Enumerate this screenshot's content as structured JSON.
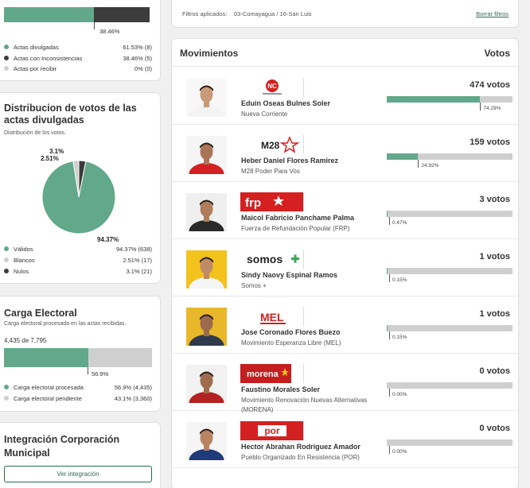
{
  "colors": {
    "green": "#62a88a",
    "dark": "#3c3c3c",
    "gray": "#cfcfcf",
    "accent": "#2e6b4f"
  },
  "actas": {
    "bar_percent_label": "38.46%",
    "bar_fill_fraction": 0.6153,
    "legend": [
      {
        "label": "Actas divulgadas",
        "value": "61.53% (8)",
        "color": "#62a88a"
      },
      {
        "label": "Actas con Inconsistencias",
        "value": "38.46% (5)",
        "color": "#3c3c3c"
      },
      {
        "label": "Actas por recibir",
        "value": "0% (0)",
        "color": "#cfcfcf"
      }
    ]
  },
  "distribucion": {
    "title": "Distribucion de votos de las actas divulgadas",
    "subtitle": "Distribución de los votos.",
    "legend": [
      {
        "label": "Válidos",
        "value": "94.37% (638)",
        "color": "#62a88a"
      },
      {
        "label": "Blancos",
        "value": "2.51% (17)",
        "color": "#cfcfcf"
      },
      {
        "label": "Nulos",
        "value": "3.1% (21)",
        "color": "#3c3c3c"
      }
    ]
  },
  "chart_data": {
    "type": "pie",
    "categories": [
      "Válidos",
      "Blancos",
      "Nulos"
    ],
    "values": [
      94.37,
      2.51,
      3.1
    ],
    "counts": [
      638,
      17,
      21
    ],
    "colors": [
      "#62a88a",
      "#cfcfcf",
      "#3c3c3c"
    ],
    "slice_labels": [
      "94.37%",
      "2.51%",
      "3.1%"
    ]
  },
  "carga": {
    "title": "Carga Electoral",
    "subtitle": "Carga electoral procesada en las actas recibidas.",
    "count": "4,435 de 7,795",
    "fill_fraction": 0.569,
    "percent_label": "56.9%",
    "legend": [
      {
        "label": "Carga electoral procesada",
        "value": "56.9% (4,435)",
        "color": "#62a88a"
      },
      {
        "label": "Carga electoral pendiente",
        "value": "43.1% (3,360)",
        "color": "#cfcfcf"
      }
    ]
  },
  "integracion": {
    "title": "Integración Corporación Municipal",
    "button": "Ver integración"
  },
  "filters": {
    "label": "Filtros aplicados:",
    "value": "03-Comayagua / 16-San Luis",
    "clear": "Borrar filtros"
  },
  "movimientos": {
    "title": "Movimientos",
    "votes_header": "Votos",
    "candidates": [
      {
        "name": "Eduin Oseas Bulnes Soler",
        "party": "Nueva Corriente",
        "votes": "474 votos",
        "percent": "74.29%",
        "fill": 0.7429,
        "logo": "nueva-corriente-logo",
        "shirt": "#f3f3f3",
        "skin": "#c89a78",
        "bg": "#f7f7f7"
      },
      {
        "name": "Heber Daniel Flores Ramirez",
        "party": "M28 Poder Para Vos",
        "votes": "159 votos",
        "percent": "24.92%",
        "fill": 0.2492,
        "logo": "m28-logo",
        "shirt": "#d42020",
        "skin": "#a97556",
        "bg": "#f5f5f5"
      },
      {
        "name": "Maicol Fabricio Panchame Palma",
        "party": "Fuerza de Refundación Popular (FRP)",
        "votes": "3 votos",
        "percent": "0.47%",
        "fill": 0.0047,
        "logo": "frp-logo",
        "shirt": "#2a2a2a",
        "skin": "#b07e5c",
        "bg": "#efefef"
      },
      {
        "name": "Sindy Naovy Espinal Ramos",
        "party": "Somos +",
        "votes": "1 votos",
        "percent": "0.15%",
        "fill": 0.0015,
        "logo": "somos-logo",
        "shirt": "#f5f5f5",
        "skin": "#c08a66",
        "bg": "#f3c21c"
      },
      {
        "name": "Jose Coronado Flores Buezo",
        "party": "Movimiento Esperanza Libre (MEL)",
        "votes": "1 votos",
        "percent": "0.15%",
        "fill": 0.0015,
        "logo": "mel-logo",
        "shirt": "#2f3a4a",
        "skin": "#9c6a4c",
        "bg": "#e9b82a"
      },
      {
        "name": "Faustino Morales Soler",
        "party": "Movimiento Renovación Nuevas Alternativas (MORENA)",
        "votes": "0 votos",
        "percent": "0.00%",
        "fill": 0,
        "logo": "morena-logo",
        "shirt": "#b52222",
        "skin": "#a06c4e",
        "bg": "#f2f2f2"
      },
      {
        "name": "Hector Abrahan Rodriguez Amador",
        "party": "Pueblo Organizado En Resistencia (POR)",
        "votes": "0 votos",
        "percent": "0.00%",
        "fill": 0,
        "logo": "por-logo",
        "shirt": "#1f3c7a",
        "skin": "#b98462",
        "bg": "#f5f5f5"
      }
    ]
  }
}
